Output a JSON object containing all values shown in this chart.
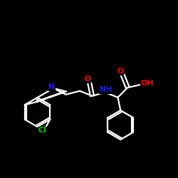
{
  "background_color": "#000000",
  "bond_color": "#ffffff",
  "atom_colors": {
    "N": "#1a1aff",
    "O": "#ff0000",
    "Cl": "#00cc00",
    "C": "#ffffff"
  },
  "figsize": [
    2.5,
    2.5
  ],
  "dpi": 100,
  "lw": 1.6,
  "fontsize": 8.0
}
